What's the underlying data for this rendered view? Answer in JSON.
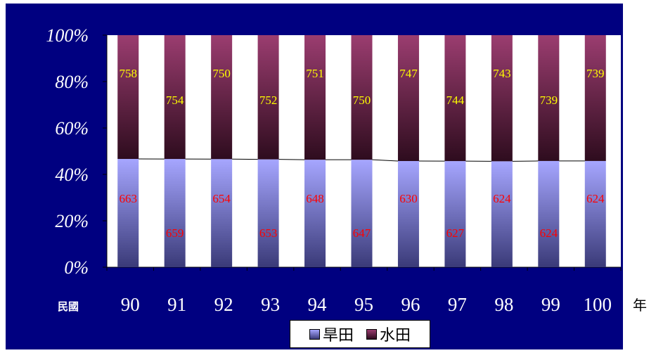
{
  "chart_data": {
    "type": "bar",
    "stacked_percent": true,
    "x_prefix": "民國",
    "x_unit": "年",
    "categories": [
      "90",
      "91",
      "92",
      "93",
      "94",
      "95",
      "96",
      "97",
      "98",
      "99",
      "100"
    ],
    "series": [
      {
        "name": "旱田",
        "values": [
          663,
          659,
          654,
          653,
          648,
          647,
          630,
          627,
          624,
          624,
          624
        ],
        "color": "#9999ff",
        "label_color": "#ff0000"
      },
      {
        "name": "水田",
        "values": [
          758,
          754,
          750,
          752,
          751,
          750,
          747,
          744,
          743,
          739,
          739
        ],
        "color": "#993366",
        "label_color": "#ffff00"
      }
    ],
    "y_ticks": [
      "0%",
      "20%",
      "40%",
      "60%",
      "80%",
      "100%"
    ],
    "ylim": [
      0,
      100
    ],
    "legend_position": "bottom"
  }
}
